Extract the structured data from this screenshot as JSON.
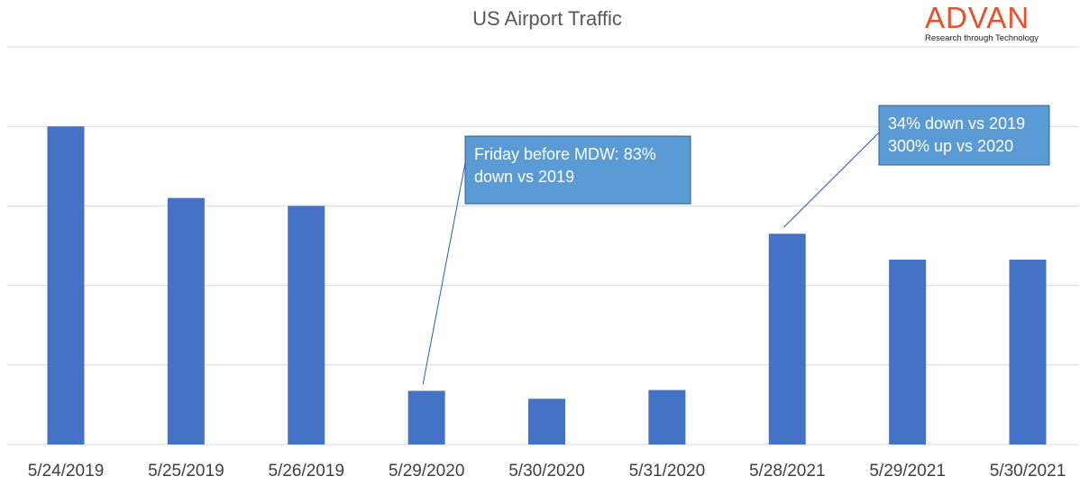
{
  "logo": {
    "name": "ADVAN",
    "tagline": "Research through Technology",
    "color": "#e8502c"
  },
  "chart_data": {
    "type": "bar",
    "title": "US Airport Traffic",
    "xlabel": "",
    "ylabel": "",
    "ylim": [
      0,
      100
    ],
    "grid": true,
    "bar_color": "#4472c4",
    "categories": [
      "5/24/2019",
      "5/25/2019",
      "5/26/2019",
      "5/29/2020",
      "5/30/2020",
      "5/31/2020",
      "5/28/2021",
      "5/29/2021",
      "5/30/2021"
    ],
    "values": [
      80,
      62,
      60,
      13.5,
      11.5,
      13.7,
      53,
      46.5,
      46.5
    ],
    "annotations": [
      {
        "text_lines": [
          "Friday before MDW: 83%",
          "down vs 2019"
        ],
        "category": "5/29/2020"
      },
      {
        "text_lines": [
          "34% down vs 2019",
          "300% up vs 2020"
        ],
        "category": "5/28/2021"
      }
    ]
  }
}
